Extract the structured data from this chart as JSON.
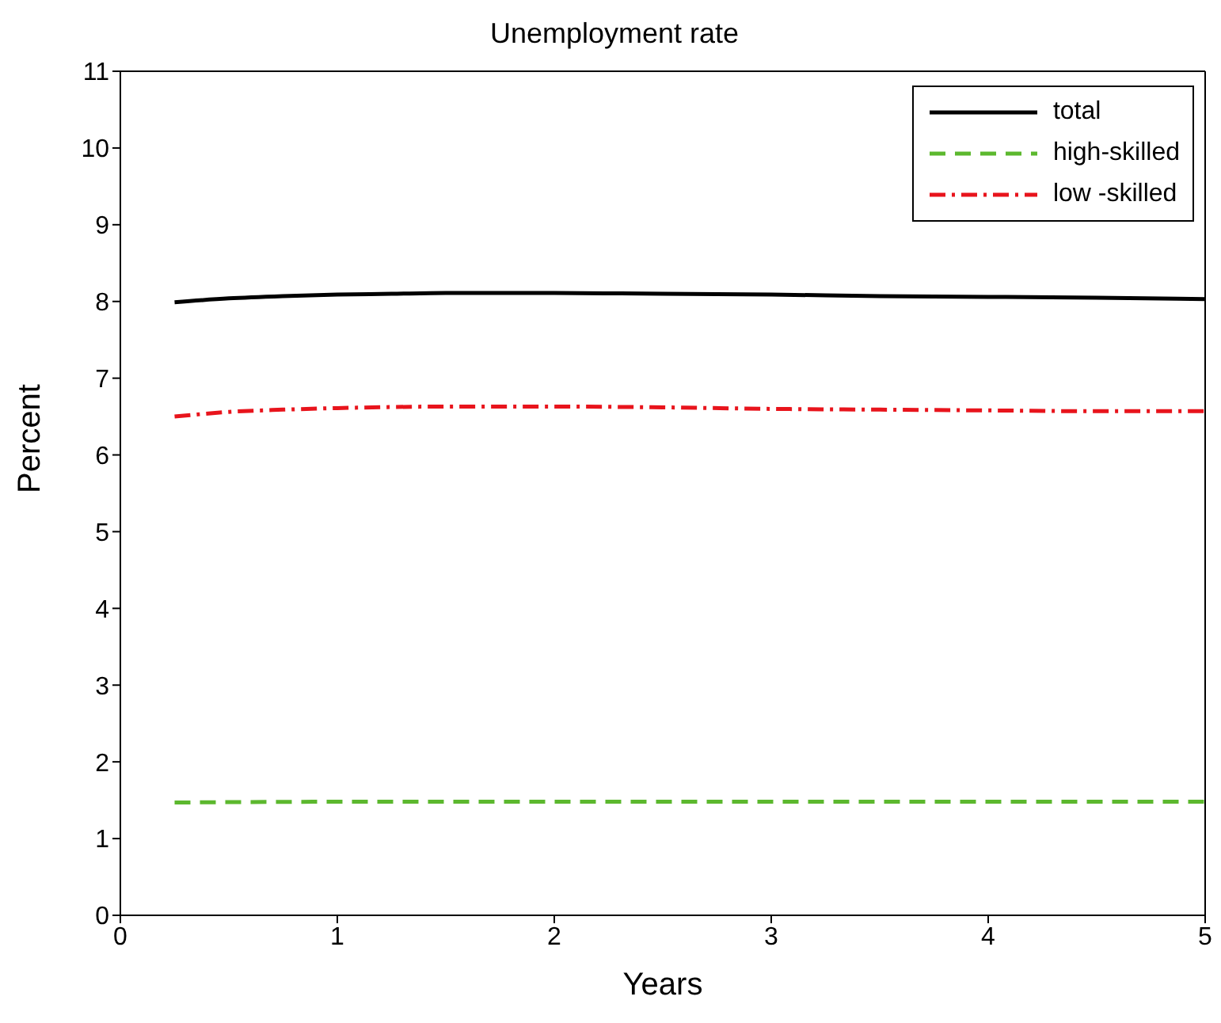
{
  "chart_data": {
    "type": "line",
    "title": "Unemployment rate",
    "xlabel": "Years",
    "ylabel": "Percent",
    "xlim": [
      0,
      5
    ],
    "xticks": [
      0,
      1,
      2,
      3,
      4,
      5
    ],
    "ylim": [
      0,
      11
    ],
    "yticks": [
      0,
      1,
      2,
      3,
      4,
      5,
      6,
      7,
      8,
      9,
      10,
      11
    ],
    "grid": false,
    "legend": "top right",
    "marker": "none",
    "series": [
      {
        "name": "total",
        "color": "#000000",
        "line_style": "solid",
        "x": [
          0.25,
          0.5,
          0.75,
          1,
          1.25,
          1.5,
          1.75,
          2,
          2.5,
          3,
          3.5,
          4,
          4.5,
          5
        ],
        "values": [
          7.99,
          8.04,
          8.07,
          8.09,
          8.1,
          8.11,
          8.11,
          8.11,
          8.1,
          8.09,
          8.07,
          8.06,
          8.05,
          8.03
        ]
      },
      {
        "name": "high-skilled",
        "color": "#5cb82e",
        "line_style": "dashed",
        "x": [
          0.25,
          1,
          2,
          3,
          4,
          5
        ],
        "values": [
          1.47,
          1.48,
          1.48,
          1.48,
          1.48,
          1.48
        ]
      },
      {
        "name": "low -skilled",
        "color": "#e8141c",
        "line_style": "dashdot",
        "x": [
          0.25,
          0.5,
          0.75,
          1,
          1.5,
          2,
          2.5,
          3,
          3.5,
          4,
          4.5,
          5
        ],
        "values": [
          6.5,
          6.56,
          6.59,
          6.61,
          6.63,
          6.63,
          6.62,
          6.6,
          6.59,
          6.58,
          6.57,
          6.57
        ]
      }
    ]
  }
}
